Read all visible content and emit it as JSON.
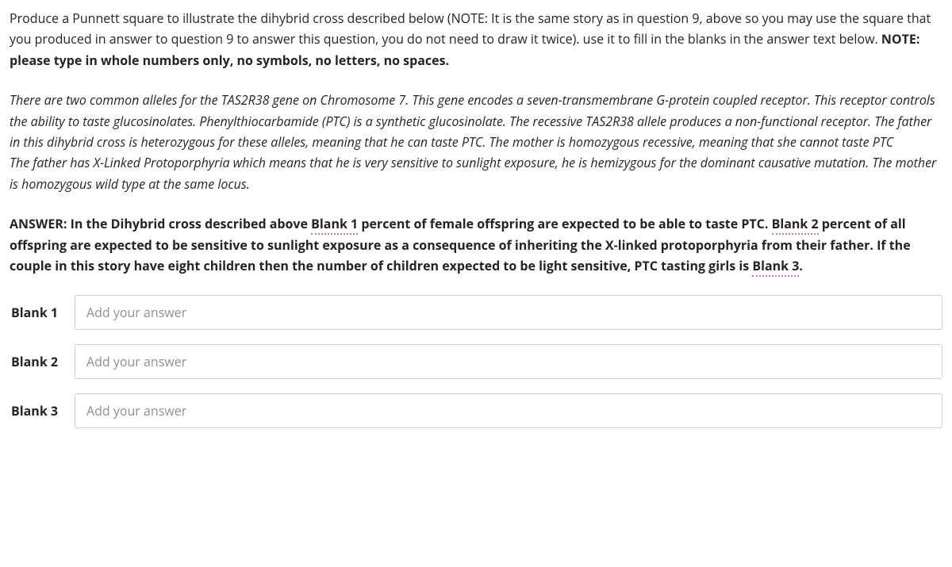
{
  "intro": {
    "part1": "Produce a Punnett square to illustrate the dihybrid cross described below (NOTE: It is the same story as in question 9, above so you may use the square that you produced in answer to question 9 to answer this question, you do not need to draw it twice). use it to fill in the blanks in the answer text below. ",
    "bold": "NOTE: please type in whole numbers only, no symbols, no letters, no spaces."
  },
  "story": {
    "p1": "There are two common alleles for the TAS2R38 gene on Chromosome 7. This gene encodes a seven-transmembrane G-protein coupled receptor. This receptor controls the ability to taste glucosinolates. Phenylthiocarbamide (PTC) is a synthetic glucosinolate. The recessive TAS2R38 allele produces a non-functional receptor. The father in this dihybrid cross is heterozygous for these alleles, meaning that he can taste PTC. The mother is homozygous recessive, meaning that she cannot taste PTC",
    "p2": "The father has X-Linked Protoporphyria which means that he is very sensitive to sunlight exposure, he is hemizygous for the dominant causative mutation. The mother is homozygous wild type at the same locus."
  },
  "answer": {
    "lead": "ANSWER: In the Dihybrid cross described above ",
    "blank1": "Blank 1",
    "seg1": " percent of female offspring are expected to be able to taste PTC. ",
    "blank2": "Blank 2",
    "seg2": " percent of all offspring are expected to be sensitive to sunlight exposure as a consequence of inheriting the X-linked protoporphyria from their father. If the couple in this story have eight children then the number of children expected to be light sensitive, PTC tasting girls is ",
    "blank3": "Blank 3",
    "tail": "."
  },
  "blanks": [
    {
      "label": "Blank 1",
      "placeholder": "Add your answer"
    },
    {
      "label": "Blank 2",
      "placeholder": "Add your answer"
    },
    {
      "label": "Blank 3",
      "placeholder": "Add your answer"
    }
  ]
}
